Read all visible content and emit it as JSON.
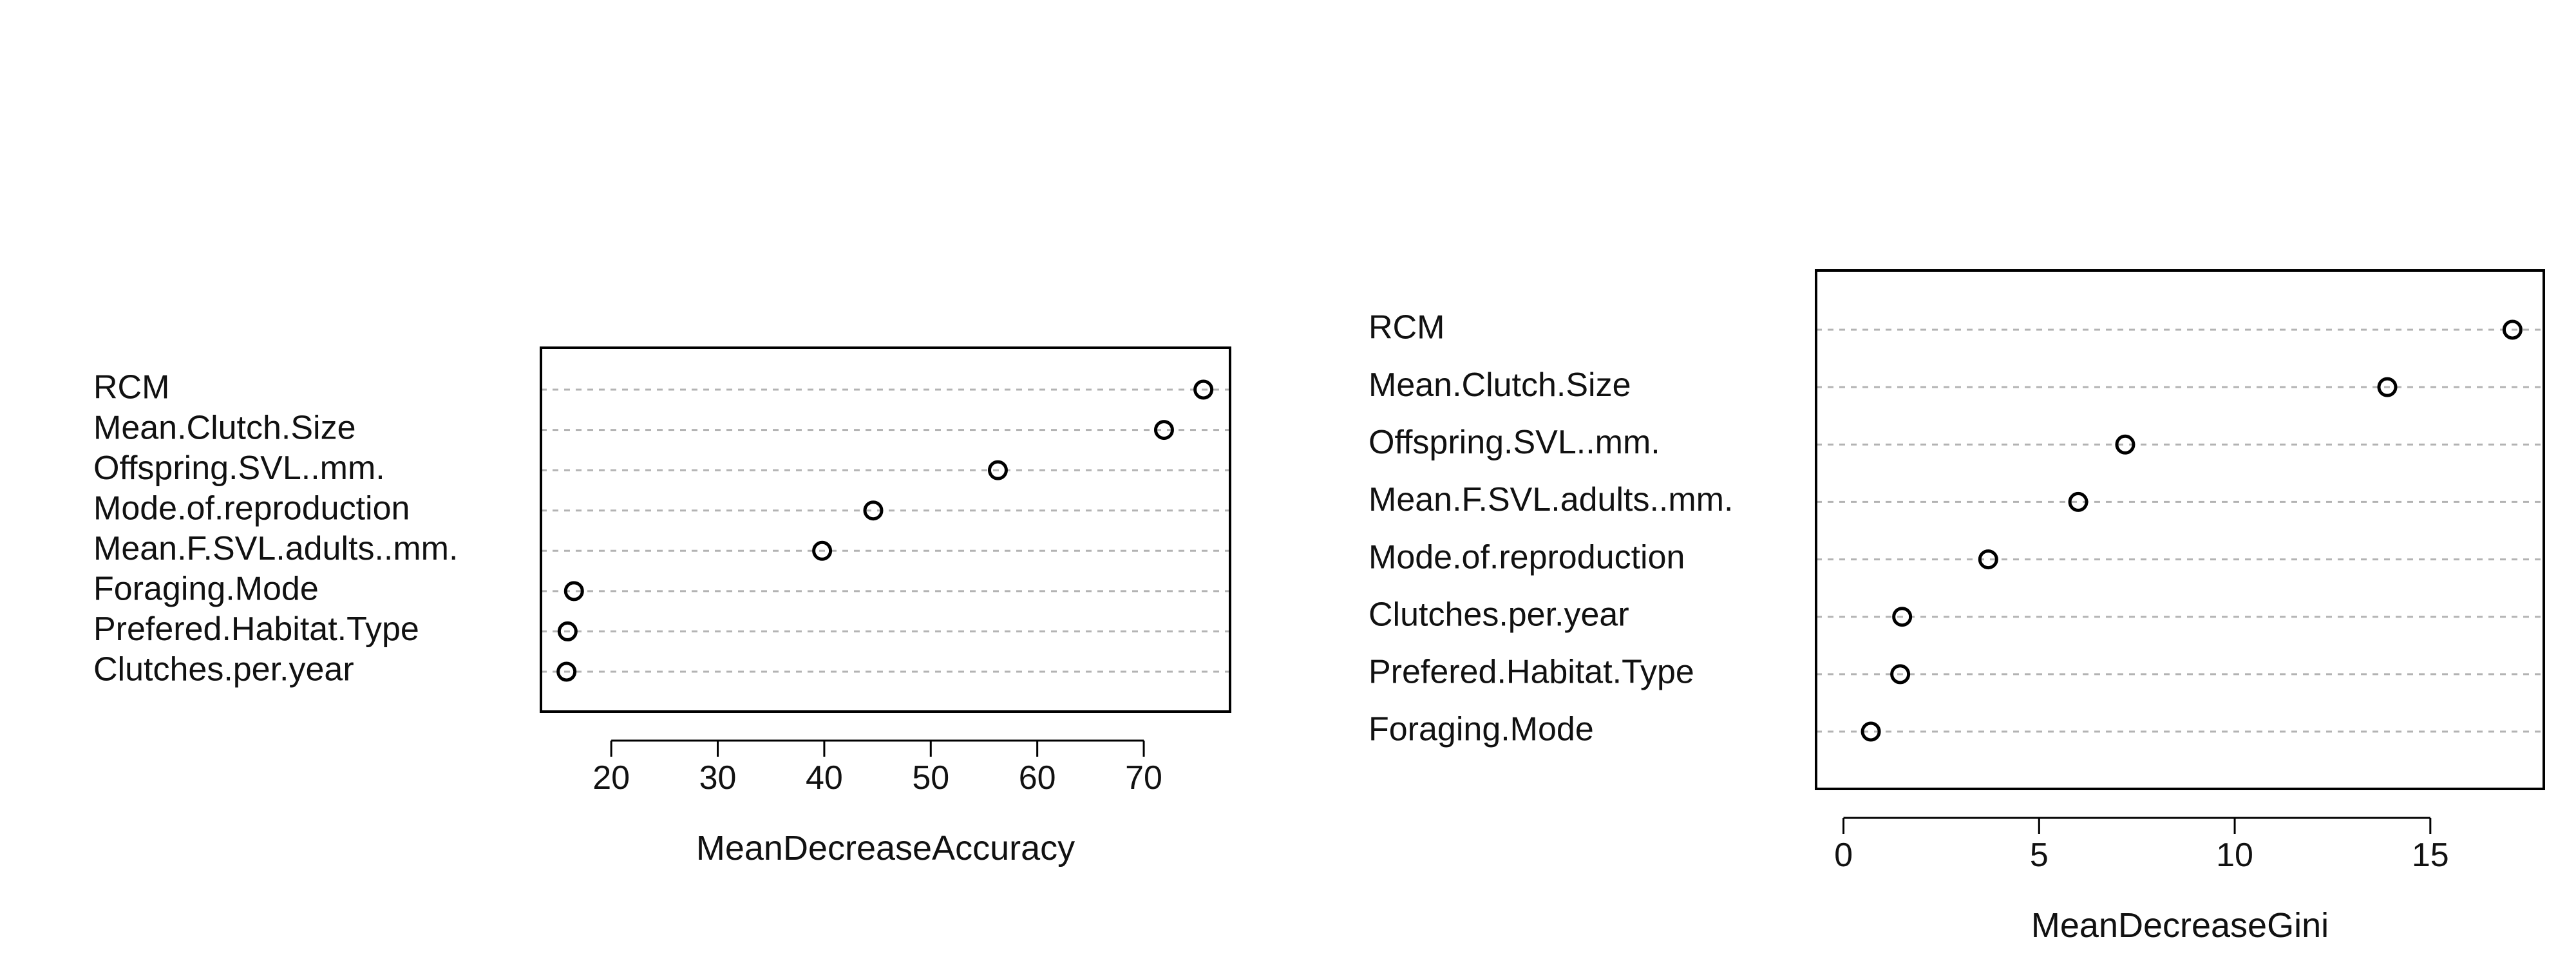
{
  "chart_data": [
    {
      "type": "scatter",
      "xlabel": "MeanDecreaseAccuracy",
      "ylabel": "",
      "title": "",
      "xticks": [
        20,
        30,
        40,
        50,
        60,
        70
      ],
      "xlim": [
        13.4,
        78.1
      ],
      "grid": "horizontal dashed",
      "categories": [
        "RCM",
        "Mean.Clutch.Size",
        "Offspring.SVL..mm.",
        "Mode.of.reproduction",
        "Mean.F.SVL.adults..mm.",
        "Foraging.Mode",
        "Prefered.Habitat.Type",
        "Clutches.per.year"
      ],
      "values": [
        75.6,
        71.9,
        56.3,
        44.6,
        39.8,
        16.5,
        15.9,
        15.8
      ]
    },
    {
      "type": "scatter",
      "xlabel": "MeanDecreaseGini",
      "ylabel": "",
      "title": "",
      "xticks": [
        0,
        5,
        10,
        15
      ],
      "xlim": [
        -0.7,
        17.9
      ],
      "grid": "horizontal dashed",
      "categories": [
        "RCM",
        "Mean.Clutch.Size",
        "Offspring.SVL..mm.",
        "Mean.F.SVL.adults..mm.",
        "Mode.of.reproduction",
        "Clutches.per.year",
        "Prefered.Habitat.Type",
        "Foraging.Mode"
      ],
      "values": [
        17.1,
        13.9,
        7.2,
        6.0,
        3.7,
        1.5,
        1.45,
        0.7
      ]
    }
  ]
}
